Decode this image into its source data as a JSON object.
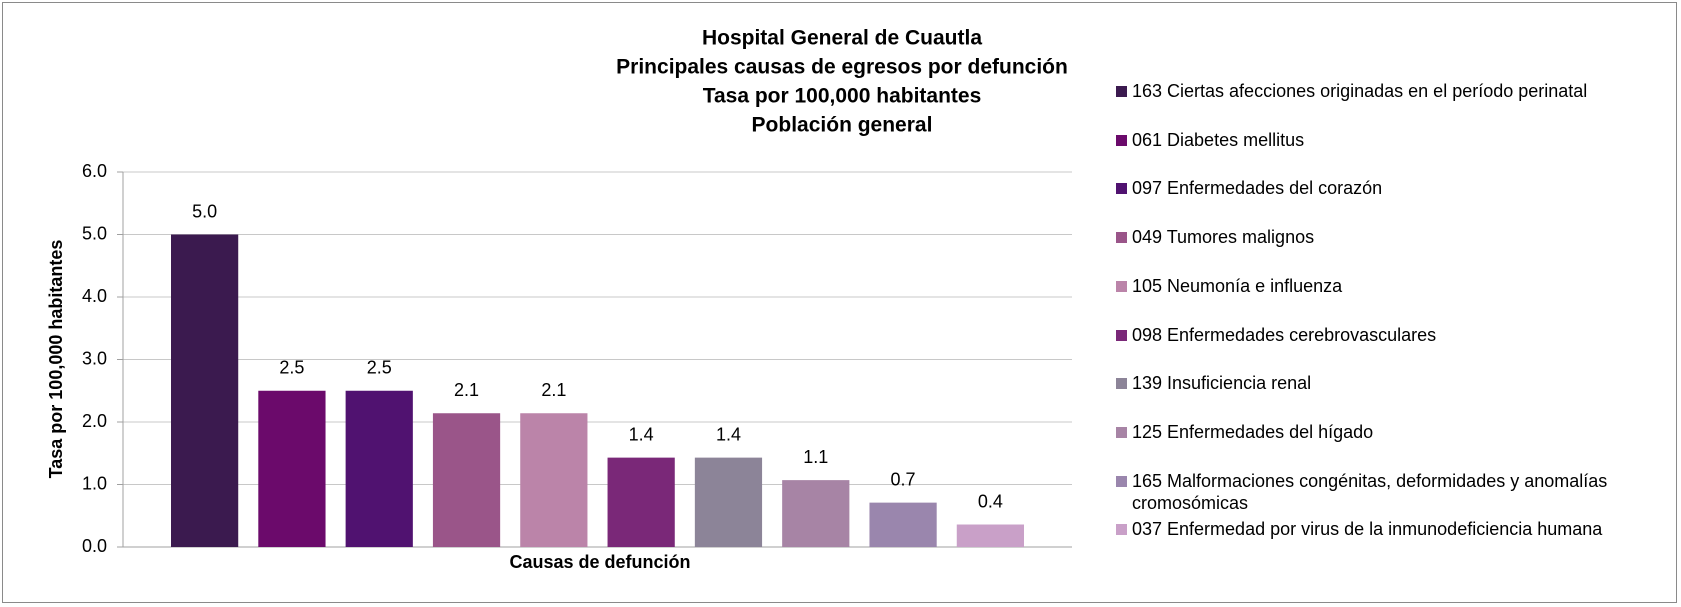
{
  "chart_data": {
    "type": "bar",
    "title": [
      "Hospital General de Cuautla",
      "Principales causas de egresos por defunción",
      "Tasa por 100,000 habitantes",
      "Población general"
    ],
    "xlabel": "Causas de defunción",
    "ylabel": "Tasa por 100,000 habitantes",
    "categories": [
      null
    ],
    "series": [
      {
        "name": "163 Ciertas afecciones originadas en el período perinatal",
        "color": "#3b1a4f",
        "values": [
          5.0
        ],
        "value_labels": [
          "5.0"
        ]
      },
      {
        "name": "061 Diabetes mellitus",
        "color": "#6b0a6b",
        "values": [
          2.5
        ],
        "value_labels": [
          "2.5"
        ]
      },
      {
        "name": "097 Enfermedades del corazón",
        "color": "#501270",
        "values": [
          2.5
        ],
        "value_labels": [
          "2.5"
        ]
      },
      {
        "name": "049 Tumores malignos",
        "color": "#9a5589",
        "values": [
          2.14
        ],
        "value_labels": [
          "2.1"
        ]
      },
      {
        "name": "105 Neumonía e influenza",
        "color": "#bb84a9",
        "values": [
          2.14
        ],
        "value_labels": [
          "2.1"
        ]
      },
      {
        "name": "098 Enfermedades cerebrovasculares",
        "color": "#7a2878",
        "values": [
          1.43
        ],
        "value_labels": [
          "1.4"
        ]
      },
      {
        "name": "139 Insuficiencia renal",
        "color": "#8c8498",
        "values": [
          1.43
        ],
        "value_labels": [
          "1.4"
        ]
      },
      {
        "name": "125 Enfermedades del hígado",
        "color": "#a784a5",
        "values": [
          1.07
        ],
        "value_labels": [
          "1.1"
        ]
      },
      {
        "name": "165 Malformaciones congénitas, deformidades y anomalías cromosómicas",
        "color": "#9a86ad",
        "values": [
          0.71
        ],
        "value_labels": [
          "0.7"
        ]
      },
      {
        "name": "037 Enfermedad por virus de la inmunodeficiencia humana",
        "color": "#c9a0c8",
        "values": [
          0.36
        ],
        "value_labels": [
          "0.4"
        ]
      }
    ],
    "ylim": [
      0,
      6
    ],
    "yticks": [
      {
        "value": 0,
        "label": "0.0"
      },
      {
        "value": 1,
        "label": "1.0"
      },
      {
        "value": 2,
        "label": "2.0"
      },
      {
        "value": 3,
        "label": "3.0"
      },
      {
        "value": 4,
        "label": "4.0"
      },
      {
        "value": 5,
        "label": "5.0"
      },
      {
        "value": 6,
        "label": "6.0"
      }
    ],
    "grid": true,
    "legend": "right"
  }
}
